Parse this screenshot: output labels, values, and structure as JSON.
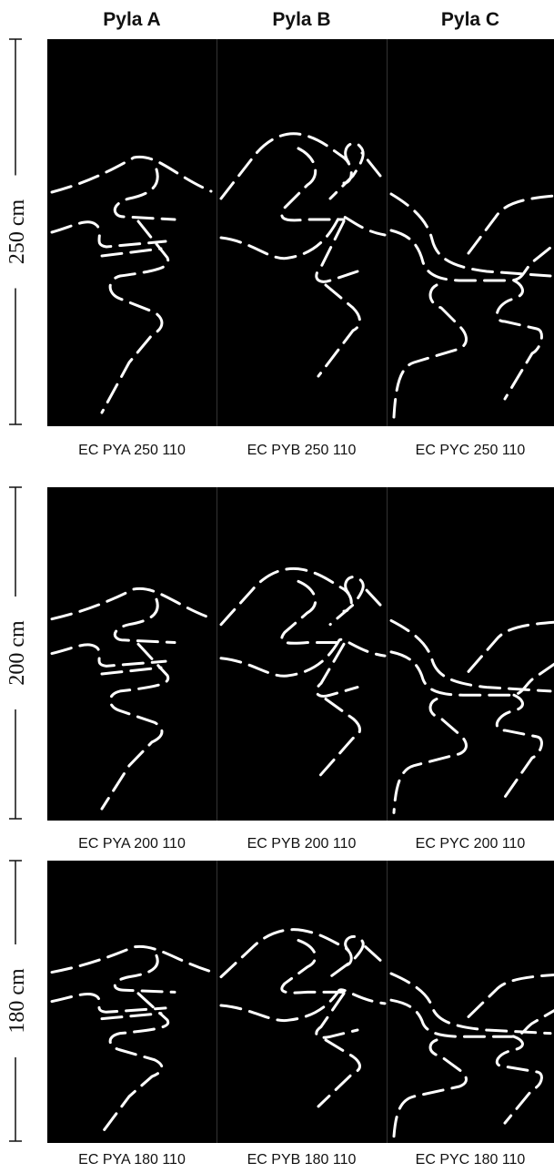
{
  "columns": [
    "Pyla A",
    "Pyla B",
    "Pyla C"
  ],
  "rows": [
    {
      "height": "250 cm",
      "captions": [
        "EC PYA 250 110",
        "EC PYB 250 110",
        "EC PYC 250 110"
      ]
    },
    {
      "height": "200 cm",
      "captions": [
        "EC PYA 200 110",
        "EC PYB 200 110",
        "EC PYC 200 110"
      ]
    },
    {
      "height": "180 cm",
      "captions": [
        "EC PYA 180 110",
        "EC PYB 180 110",
        "EC PYC 180 110"
      ]
    }
  ]
}
